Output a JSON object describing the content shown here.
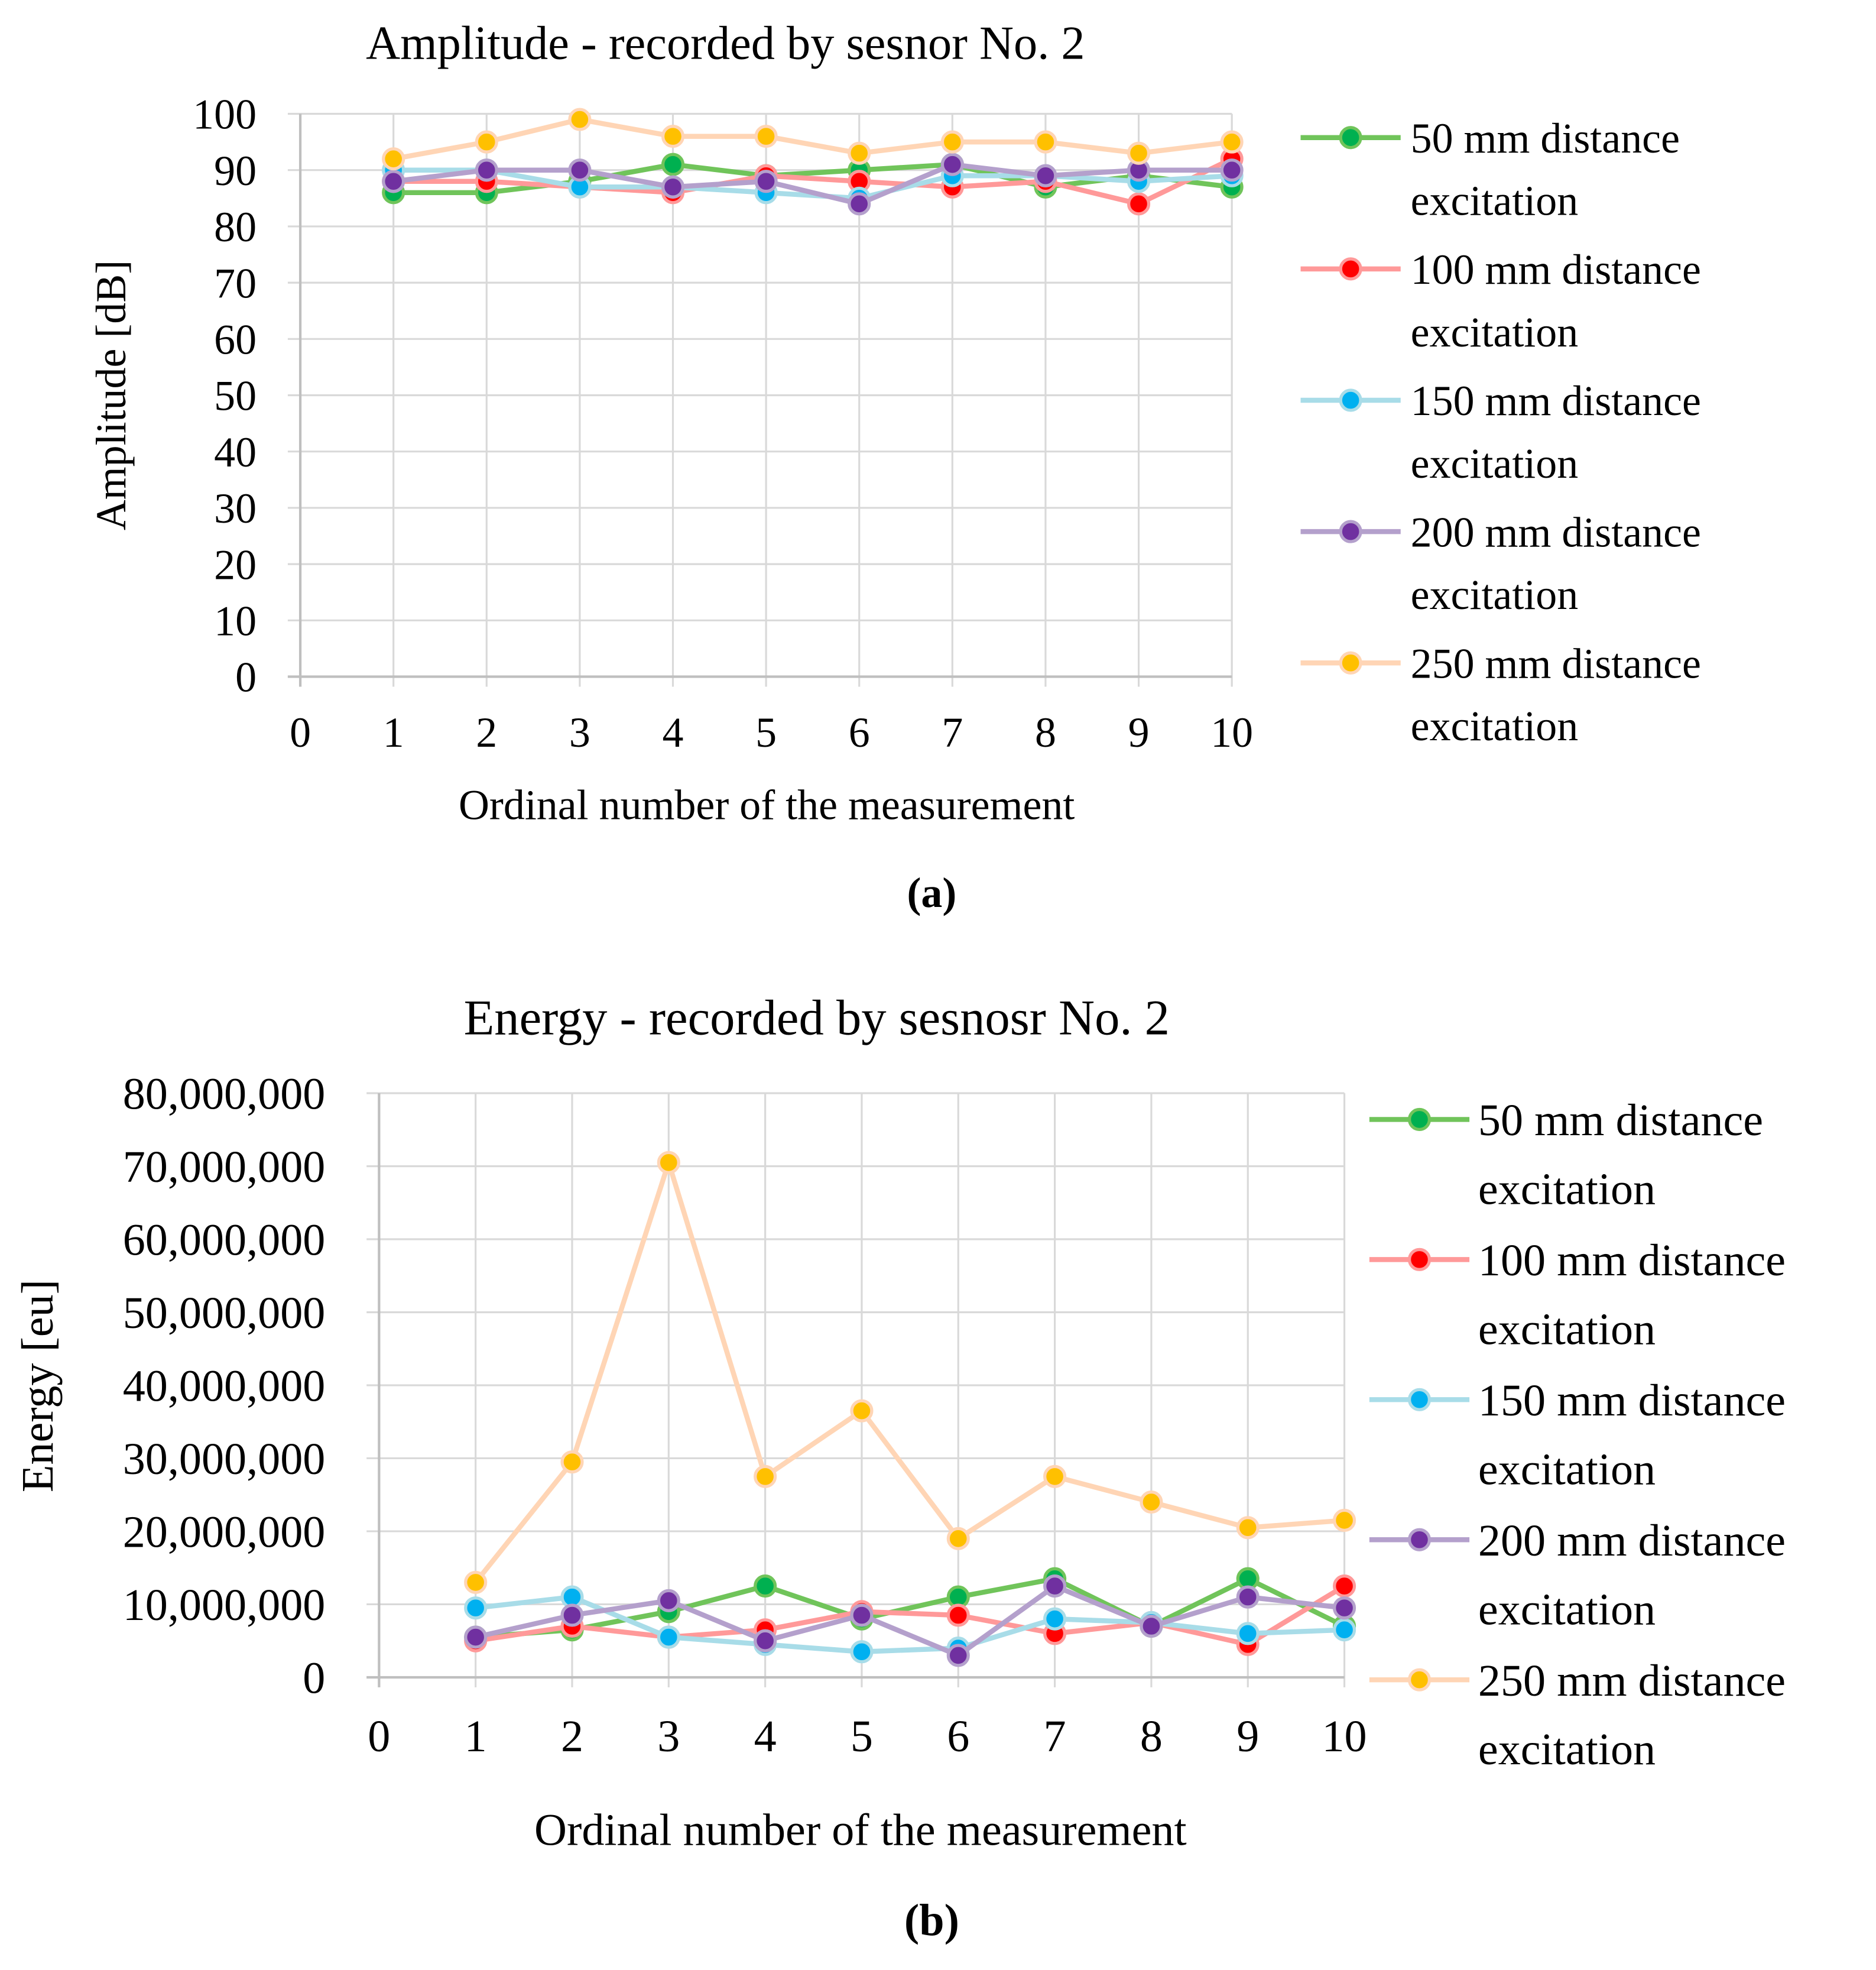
{
  "chart_data": [
    {
      "type": "line",
      "title": "Amplitude - recorded by sesnor No. 2",
      "xlabel": "Ordinal number of the measurement",
      "ylabel": "Amplitude [dB]",
      "panel_label": "(a)",
      "xlim": [
        0,
        10
      ],
      "ylim": [
        0,
        100
      ],
      "xticks": [
        "0",
        "1",
        "2",
        "3",
        "4",
        "5",
        "6",
        "7",
        "8",
        "9",
        "10"
      ],
      "yticks": [
        "0",
        "10",
        "20",
        "30",
        "40",
        "50",
        "60",
        "70",
        "80",
        "90",
        "100"
      ],
      "grid": true,
      "legend_placement": "right",
      "x": [
        1,
        2,
        3,
        4,
        5,
        6,
        7,
        8,
        9,
        10
      ],
      "series": [
        {
          "name": "50 mm distance excitation",
          "line_color": "#70c45a",
          "marker_color": "#00b050",
          "values": [
            86,
            86,
            88,
            91,
            89,
            90,
            91,
            87,
            89,
            87
          ]
        },
        {
          "name": "100 mm distance excitation",
          "line_color": "#ff9999",
          "marker_color": "#ff0000",
          "values": [
            88,
            88,
            87,
            86,
            89,
            88,
            87,
            88,
            84,
            92
          ]
        },
        {
          "name": "150 mm distance excitation",
          "line_color": "#a8dce8",
          "marker_color": "#00b0f0",
          "values": [
            90,
            90,
            87,
            87,
            86,
            85,
            89,
            89,
            88,
            89
          ]
        },
        {
          "name": "200 mm distance excitation",
          "line_color": "#b4a0cc",
          "marker_color": "#7030a0",
          "values": [
            88,
            90,
            90,
            87,
            88,
            84,
            91,
            89,
            90,
            90
          ]
        },
        {
          "name": "250 mm distance excitation",
          "line_color": "#ffd5b5",
          "marker_color": "#ffc000",
          "values": [
            92,
            95,
            99,
            96,
            96,
            93,
            95,
            95,
            93,
            95
          ]
        }
      ]
    },
    {
      "type": "line",
      "title": "Energy - recorded by sesnosr No. 2",
      "xlabel": "Ordinal number of the measurement",
      "ylabel": "Energy [eu]",
      "panel_label": "(b)",
      "xlim": [
        0,
        10
      ],
      "ylim": [
        0,
        80000000
      ],
      "xticks": [
        "0",
        "1",
        "2",
        "3",
        "4",
        "5",
        "6",
        "7",
        "8",
        "9",
        "10"
      ],
      "yticks": [
        "0",
        "10,000,000",
        "20,000,000",
        "30,000,000",
        "40,000,000",
        "50,000,000",
        "60,000,000",
        "70,000,000",
        "80,000,000"
      ],
      "grid": true,
      "legend_placement": "right",
      "x": [
        1,
        2,
        3,
        4,
        5,
        6,
        7,
        8,
        9,
        10
      ],
      "series": [
        {
          "name": "50 mm distance excitation",
          "line_color": "#70c45a",
          "marker_color": "#00b050",
          "values": [
            5500000,
            6500000,
            9000000,
            12500000,
            8000000,
            11000000,
            13500000,
            7000000,
            13500000,
            7000000
          ]
        },
        {
          "name": "100 mm distance excitation",
          "line_color": "#ff9999",
          "marker_color": "#ff0000",
          "values": [
            5000000,
            7000000,
            5500000,
            6500000,
            9000000,
            8500000,
            6000000,
            7500000,
            4500000,
            12500000
          ]
        },
        {
          "name": "150 mm distance excitation",
          "line_color": "#a8dce8",
          "marker_color": "#00b0f0",
          "values": [
            9500000,
            11000000,
            5500000,
            4500000,
            3500000,
            4000000,
            8000000,
            7500000,
            6000000,
            6500000
          ]
        },
        {
          "name": "200 mm distance excitation",
          "line_color": "#b4a0cc",
          "marker_color": "#7030a0",
          "values": [
            5500000,
            8500000,
            10500000,
            5000000,
            8500000,
            3000000,
            12500000,
            7000000,
            11000000,
            9500000
          ]
        },
        {
          "name": "250 mm distance excitation",
          "line_color": "#ffd5b5",
          "marker_color": "#ffc000",
          "values": [
            13000000,
            29500000,
            70500000,
            27500000,
            36500000,
            19000000,
            27500000,
            24000000,
            20500000,
            21500000
          ]
        }
      ]
    }
  ]
}
